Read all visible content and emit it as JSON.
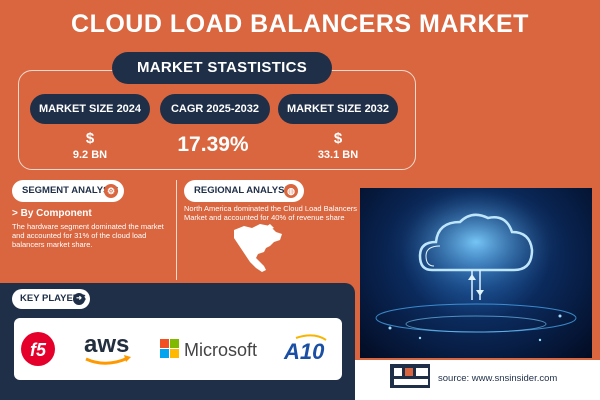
{
  "title": "CLOUD LOAD BALANCERS MARKET",
  "stats": {
    "heading": "MARKET STASTISTICS",
    "size_2024_label": "MARKET SIZE 2024",
    "size_2024_currency": "$",
    "size_2024_value": "9.2 BN",
    "cagr_label": "CAGR 2025-2032",
    "cagr_value": "17.39%",
    "size_2032_label": "MARKET SIZE 2032",
    "size_2032_currency": "$",
    "size_2032_value": "33.1 BN"
  },
  "segment": {
    "label": "SEGMENT ANALYSIS",
    "icon": "gear-icon",
    "sub_heading": "> By Component",
    "text": "The hardware segment dominated the market and accounted for 31% of the cloud load balancers market share."
  },
  "regional": {
    "label": "REGIONAL ANALYSIS",
    "icon": "globe-icon",
    "text": "North America dominated the Cloud Load Balancers Market and accounted for 40% of revenue share"
  },
  "key_players": {
    "label": "KEY PLAYERS",
    "icon": "arrow-icon",
    "logos": [
      "f5",
      "aws",
      "Microsoft",
      "A10"
    ]
  },
  "source": "source: www.snsinsider.com",
  "colors": {
    "background": "#d9663f",
    "navy": "#1f2f48",
    "f5": "#e4002b",
    "aws_orange": "#ff9900",
    "a10_blue": "#1a4fa3"
  }
}
